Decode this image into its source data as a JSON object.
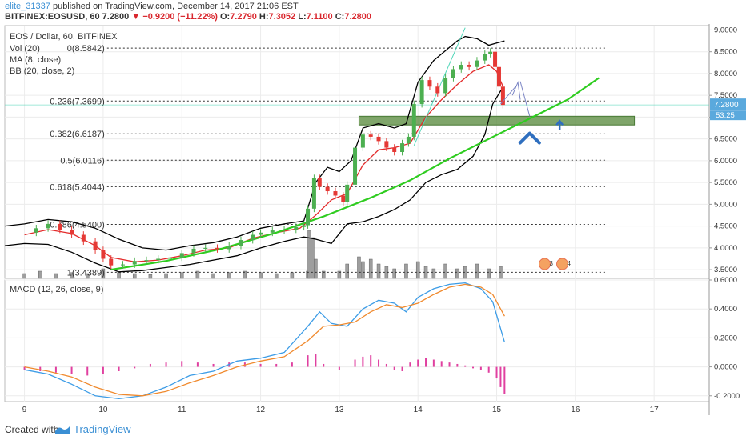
{
  "header": {
    "author": "elite_31337",
    "published_text": "published on TradingView.com, December 14, 2017 21:06 EST",
    "symbol": "BITFINEX:EOSUSD, 60",
    "last": "7.2800",
    "change_arrow": "▼",
    "change": "−0.9200 (−11.22%)",
    "o_label": "O:",
    "o_value": "7.2790",
    "h_label": "H:",
    "h_value": "7.3052",
    "l_label": "L:",
    "l_value": "7.1100",
    "c_label": "C:",
    "c_value": "7.2800"
  },
  "legend": {
    "title": "EOS / Dollar, 60, BITFINEX",
    "vol": "Vol (20)",
    "ma": "MA (8, close)",
    "bb": "BB (20, close, 2)",
    "macd": "MACD (12, 26, close, 9)"
  },
  "price_badge": "7.2800",
  "countdown_badge": "53:25",
  "event_badges": [
    "3",
    "4"
  ],
  "footer": {
    "created": "Created with",
    "brand": "TradingView"
  },
  "colors": {
    "candle_up": "#4caf50",
    "candle_down": "#e53935",
    "ma": "#e32b2b",
    "bb": "#000000",
    "curve": "#2ecc1f",
    "trendline": "#4fd6b8",
    "zone": "#5f8f45",
    "macd": "#3c9ce6",
    "signal": "#f08a2e",
    "hist": "#e040a0",
    "arrow": "#2f6fbf",
    "badge": "#5aa9dd"
  },
  "chart_data": [
    {
      "type": "candlestick",
      "title": "EOS / Dollar, 60, BITFINEX",
      "x_ticks": [
        "9",
        "10",
        "11",
        "12",
        "13",
        "14",
        "15",
        "16",
        "17"
      ],
      "y_ticks": [
        "3.5000",
        "4.0000",
        "4.5000",
        "5.0000",
        "5.5000",
        "6.0000",
        "6.5000",
        "7.0000",
        "7.5000",
        "8.0000",
        "8.5000",
        "9.0000"
      ],
      "ylim": [
        3.3,
        9.1
      ],
      "xlim": [
        8.75,
        17.7
      ],
      "fib_levels": [
        {
          "label": "0(8.5842)",
          "value": 8.5842
        },
        {
          "label": "0.236(7.3699)",
          "value": 7.3699
        },
        {
          "label": "0.382(6.6187)",
          "value": 6.6187
        },
        {
          "label": "0.5(6.0116)",
          "value": 6.0116
        },
        {
          "label": "0.618(5.4044)",
          "value": 5.4044
        },
        {
          "label": "0.786(4.5400)",
          "value": 4.54
        },
        {
          "label": "1(3.4389)",
          "value": 3.4389
        }
      ],
      "last_price": 7.28,
      "support_zone": [
        6.82,
        7.02
      ],
      "price_series": [
        [
          9.0,
          4.35
        ],
        [
          9.15,
          4.45
        ],
        [
          9.3,
          4.55
        ],
        [
          9.45,
          4.42
        ],
        [
          9.6,
          4.3
        ],
        [
          9.75,
          4.15
        ],
        [
          9.9,
          3.95
        ],
        [
          10.0,
          3.75
        ],
        [
          10.1,
          3.6
        ],
        [
          10.25,
          3.62
        ],
        [
          10.4,
          3.7
        ],
        [
          10.55,
          3.72
        ],
        [
          10.7,
          3.75
        ],
        [
          10.85,
          3.78
        ],
        [
          11.0,
          3.88
        ],
        [
          11.15,
          3.98
        ],
        [
          11.3,
          4.0
        ],
        [
          11.45,
          3.97
        ],
        [
          11.6,
          4.05
        ],
        [
          11.75,
          4.18
        ],
        [
          11.9,
          4.3
        ],
        [
          12.0,
          4.35
        ],
        [
          12.15,
          4.4
        ],
        [
          12.3,
          4.42
        ],
        [
          12.45,
          4.48
        ],
        [
          12.55,
          4.52
        ],
        [
          12.6,
          4.9
        ],
        [
          12.68,
          5.6
        ],
        [
          12.75,
          5.4
        ],
        [
          12.85,
          5.3
        ],
        [
          12.95,
          5.2
        ],
        [
          13.05,
          5.05
        ],
        [
          13.1,
          5.45
        ],
        [
          13.2,
          6.3
        ],
        [
          13.3,
          6.6
        ],
        [
          13.4,
          6.55
        ],
        [
          13.5,
          6.45
        ],
        [
          13.6,
          6.3
        ],
        [
          13.7,
          6.2
        ],
        [
          13.8,
          6.4
        ],
        [
          13.88,
          6.55
        ],
        [
          13.95,
          7.3
        ],
        [
          14.05,
          7.85
        ],
        [
          14.15,
          7.7
        ],
        [
          14.25,
          7.55
        ],
        [
          14.35,
          7.9
        ],
        [
          14.45,
          8.1
        ],
        [
          14.55,
          8.2
        ],
        [
          14.65,
          8.15
        ],
        [
          14.75,
          8.3
        ],
        [
          14.85,
          8.45
        ],
        [
          14.92,
          8.5
        ],
        [
          14.98,
          8.15
        ],
        [
          15.03,
          7.7
        ],
        [
          15.08,
          7.28
        ]
      ],
      "ma_series": [
        [
          9.0,
          4.3
        ],
        [
          9.3,
          4.42
        ],
        [
          9.6,
          4.33
        ],
        [
          9.9,
          4.05
        ],
        [
          10.1,
          3.78
        ],
        [
          10.4,
          3.68
        ],
        [
          10.7,
          3.72
        ],
        [
          11.0,
          3.82
        ],
        [
          11.3,
          3.95
        ],
        [
          11.6,
          4.0
        ],
        [
          11.9,
          4.22
        ],
        [
          12.2,
          4.35
        ],
        [
          12.5,
          4.45
        ],
        [
          12.7,
          4.75
        ],
        [
          12.9,
          5.1
        ],
        [
          13.1,
          5.25
        ],
        [
          13.3,
          5.9
        ],
        [
          13.5,
          6.25
        ],
        [
          13.7,
          6.3
        ],
        [
          13.9,
          6.4
        ],
        [
          14.1,
          7.0
        ],
        [
          14.3,
          7.4
        ],
        [
          14.5,
          7.75
        ],
        [
          14.7,
          8.05
        ],
        [
          14.9,
          8.2
        ],
        [
          15.0,
          8.05
        ],
        [
          15.08,
          7.7
        ]
      ],
      "bb_upper": [
        [
          8.75,
          4.5
        ],
        [
          9.0,
          4.55
        ],
        [
          9.3,
          4.65
        ],
        [
          9.6,
          4.6
        ],
        [
          9.9,
          4.45
        ],
        [
          10.2,
          4.2
        ],
        [
          10.5,
          4.0
        ],
        [
          10.8,
          3.95
        ],
        [
          11.1,
          4.05
        ],
        [
          11.4,
          4.12
        ],
        [
          11.7,
          4.25
        ],
        [
          12.0,
          4.45
        ],
        [
          12.3,
          4.55
        ],
        [
          12.55,
          4.62
        ],
        [
          12.7,
          5.5
        ],
        [
          12.85,
          5.85
        ],
        [
          13.0,
          5.75
        ],
        [
          13.15,
          6.0
        ],
        [
          13.3,
          6.75
        ],
        [
          13.5,
          6.85
        ],
        [
          13.7,
          6.75
        ],
        [
          13.85,
          6.85
        ],
        [
          14.0,
          7.8
        ],
        [
          14.2,
          8.3
        ],
        [
          14.4,
          8.6
        ],
        [
          14.5,
          8.75
        ],
        [
          14.6,
          8.85
        ],
        [
          14.75,
          8.8
        ],
        [
          14.9,
          8.65
        ],
        [
          15.0,
          8.7
        ],
        [
          15.1,
          8.75
        ]
      ],
      "bb_lower": [
        [
          8.75,
          4.05
        ],
        [
          9.0,
          4.1
        ],
        [
          9.3,
          4.08
        ],
        [
          9.6,
          3.9
        ],
        [
          9.9,
          3.65
        ],
        [
          10.2,
          3.45
        ],
        [
          10.5,
          3.48
        ],
        [
          10.8,
          3.55
        ],
        [
          11.1,
          3.62
        ],
        [
          11.4,
          3.72
        ],
        [
          11.7,
          3.82
        ],
        [
          12.0,
          4.0
        ],
        [
          12.3,
          4.15
        ],
        [
          12.55,
          4.25
        ],
        [
          12.7,
          4.2
        ],
        [
          12.9,
          4.1
        ],
        [
          13.1,
          4.55
        ],
        [
          13.3,
          4.6
        ],
        [
          13.5,
          4.72
        ],
        [
          13.7,
          4.88
        ],
        [
          13.9,
          5.1
        ],
        [
          14.1,
          5.5
        ],
        [
          14.3,
          5.68
        ],
        [
          14.5,
          5.8
        ],
        [
          14.7,
          6.1
        ],
        [
          14.85,
          6.6
        ],
        [
          14.95,
          7.3
        ],
        [
          15.05,
          7.6
        ],
        [
          15.1,
          7.6
        ]
      ],
      "green_curve": [
        [
          10.1,
          3.5
        ],
        [
          10.8,
          3.7
        ],
        [
          11.5,
          3.98
        ],
        [
          12.2,
          4.35
        ],
        [
          12.8,
          4.72
        ],
        [
          13.4,
          5.15
        ],
        [
          13.9,
          5.55
        ],
        [
          14.4,
          6.05
        ],
        [
          14.9,
          6.5
        ],
        [
          15.4,
          6.95
        ],
        [
          15.9,
          7.4
        ],
        [
          16.3,
          7.9
        ]
      ],
      "trendline": [
        [
          13.95,
          6.35
        ],
        [
          14.6,
          9.05
        ]
      ],
      "volume": [
        [
          9.0,
          0.1
        ],
        [
          9.2,
          0.15
        ],
        [
          9.4,
          0.1
        ],
        [
          9.6,
          0.12
        ],
        [
          9.8,
          0.1
        ],
        [
          10.0,
          0.2
        ],
        [
          10.2,
          0.12
        ],
        [
          10.4,
          0.1
        ],
        [
          10.6,
          0.08
        ],
        [
          10.8,
          0.1
        ],
        [
          11.0,
          0.12
        ],
        [
          11.2,
          0.15
        ],
        [
          11.4,
          0.1
        ],
        [
          11.6,
          0.12
        ],
        [
          11.8,
          0.15
        ],
        [
          12.0,
          0.12
        ],
        [
          12.2,
          0.1
        ],
        [
          12.4,
          0.12
        ],
        [
          12.6,
          0.15
        ],
        [
          12.62,
          1.0
        ],
        [
          12.66,
          0.85
        ],
        [
          12.7,
          0.4
        ],
        [
          12.8,
          0.15
        ],
        [
          13.0,
          0.15
        ],
        [
          13.1,
          0.3
        ],
        [
          13.25,
          0.45
        ],
        [
          13.3,
          0.35
        ],
        [
          13.4,
          0.4
        ],
        [
          13.5,
          0.3
        ],
        [
          13.6,
          0.25
        ],
        [
          13.7,
          0.2
        ],
        [
          13.85,
          0.3
        ],
        [
          14.0,
          0.35
        ],
        [
          14.1,
          0.25
        ],
        [
          14.2,
          0.2
        ],
        [
          14.35,
          0.3
        ],
        [
          14.5,
          0.2
        ],
        [
          14.6,
          0.25
        ],
        [
          14.75,
          0.3
        ],
        [
          14.9,
          0.2
        ],
        [
          15.05,
          0.25
        ]
      ]
    },
    {
      "type": "line",
      "title": "MACD (12, 26, close, 9)",
      "y_ticks": [
        "-0.2000",
        "0.0000",
        "0.2000",
        "0.4000",
        "0.6000"
      ],
      "ylim": [
        -0.24,
        0.6
      ],
      "series": [
        {
          "values": [
            [
              9.0,
              -0.02
            ],
            [
              9.3,
              -0.05
            ],
            [
              9.6,
              -0.12
            ],
            [
              9.9,
              -0.2
            ],
            [
              10.2,
              -0.22
            ],
            [
              10.5,
              -0.2
            ],
            [
              10.8,
              -0.14
            ],
            [
              11.1,
              -0.06
            ],
            [
              11.4,
              -0.03
            ],
            [
              11.7,
              0.04
            ],
            [
              12.0,
              0.06
            ],
            [
              12.3,
              0.1
            ],
            [
              12.6,
              0.28
            ],
            [
              12.75,
              0.38
            ],
            [
              12.9,
              0.3
            ],
            [
              13.1,
              0.28
            ],
            [
              13.3,
              0.4
            ],
            [
              13.5,
              0.46
            ],
            [
              13.7,
              0.44
            ],
            [
              13.85,
              0.38
            ],
            [
              14.0,
              0.48
            ],
            [
              14.2,
              0.54
            ],
            [
              14.4,
              0.57
            ],
            [
              14.6,
              0.58
            ],
            [
              14.8,
              0.54
            ],
            [
              14.95,
              0.45
            ],
            [
              15.1,
              0.17
            ]
          ]
        },
        {
          "values": [
            [
              9.0,
              0.0
            ],
            [
              9.3,
              -0.03
            ],
            [
              9.6,
              -0.07
            ],
            [
              9.9,
              -0.14
            ],
            [
              10.2,
              -0.19
            ],
            [
              10.5,
              -0.2
            ],
            [
              10.8,
              -0.17
            ],
            [
              11.1,
              -0.11
            ],
            [
              11.4,
              -0.06
            ],
            [
              11.7,
              0.0
            ],
            [
              12.0,
              0.04
            ],
            [
              12.3,
              0.07
            ],
            [
              12.6,
              0.18
            ],
            [
              12.8,
              0.28
            ],
            [
              13.0,
              0.29
            ],
            [
              13.2,
              0.31
            ],
            [
              13.4,
              0.38
            ],
            [
              13.6,
              0.43
            ],
            [
              13.8,
              0.41
            ],
            [
              14.0,
              0.44
            ],
            [
              14.2,
              0.5
            ],
            [
              14.4,
              0.55
            ],
            [
              14.6,
              0.57
            ],
            [
              14.8,
              0.55
            ],
            [
              14.95,
              0.5
            ],
            [
              15.1,
              0.35
            ]
          ]
        }
      ],
      "histogram": [
        [
          9.0,
          -0.02
        ],
        [
          9.2,
          -0.03
        ],
        [
          9.4,
          -0.04
        ],
        [
          9.6,
          -0.05
        ],
        [
          9.8,
          -0.06
        ],
        [
          10.0,
          -0.05
        ],
        [
          10.2,
          -0.03
        ],
        [
          10.4,
          -0.01
        ],
        [
          10.6,
          0.02
        ],
        [
          10.8,
          0.03
        ],
        [
          11.0,
          0.04
        ],
        [
          11.2,
          0.03
        ],
        [
          11.4,
          0.02
        ],
        [
          11.6,
          0.03
        ],
        [
          11.8,
          0.03
        ],
        [
          12.0,
          0.02
        ],
        [
          12.2,
          0.02
        ],
        [
          12.4,
          0.03
        ],
        [
          12.6,
          0.08
        ],
        [
          12.7,
          0.09
        ],
        [
          12.8,
          0.02
        ],
        [
          13.0,
          -0.02
        ],
        [
          13.2,
          0.05
        ],
        [
          13.3,
          0.07
        ],
        [
          13.4,
          0.08
        ],
        [
          13.5,
          0.05
        ],
        [
          13.6,
          0.02
        ],
        [
          13.7,
          -0.02
        ],
        [
          13.8,
          -0.03
        ],
        [
          13.9,
          0.03
        ],
        [
          14.0,
          0.05
        ],
        [
          14.1,
          0.06
        ],
        [
          14.2,
          0.05
        ],
        [
          14.3,
          0.04
        ],
        [
          14.4,
          0.03
        ],
        [
          14.5,
          0.02
        ],
        [
          14.6,
          0.01
        ],
        [
          14.7,
          -0.01
        ],
        [
          14.8,
          -0.02
        ],
        [
          14.9,
          -0.04
        ],
        [
          15.0,
          -0.08
        ],
        [
          15.05,
          -0.14
        ],
        [
          15.1,
          -0.19
        ]
      ]
    }
  ]
}
